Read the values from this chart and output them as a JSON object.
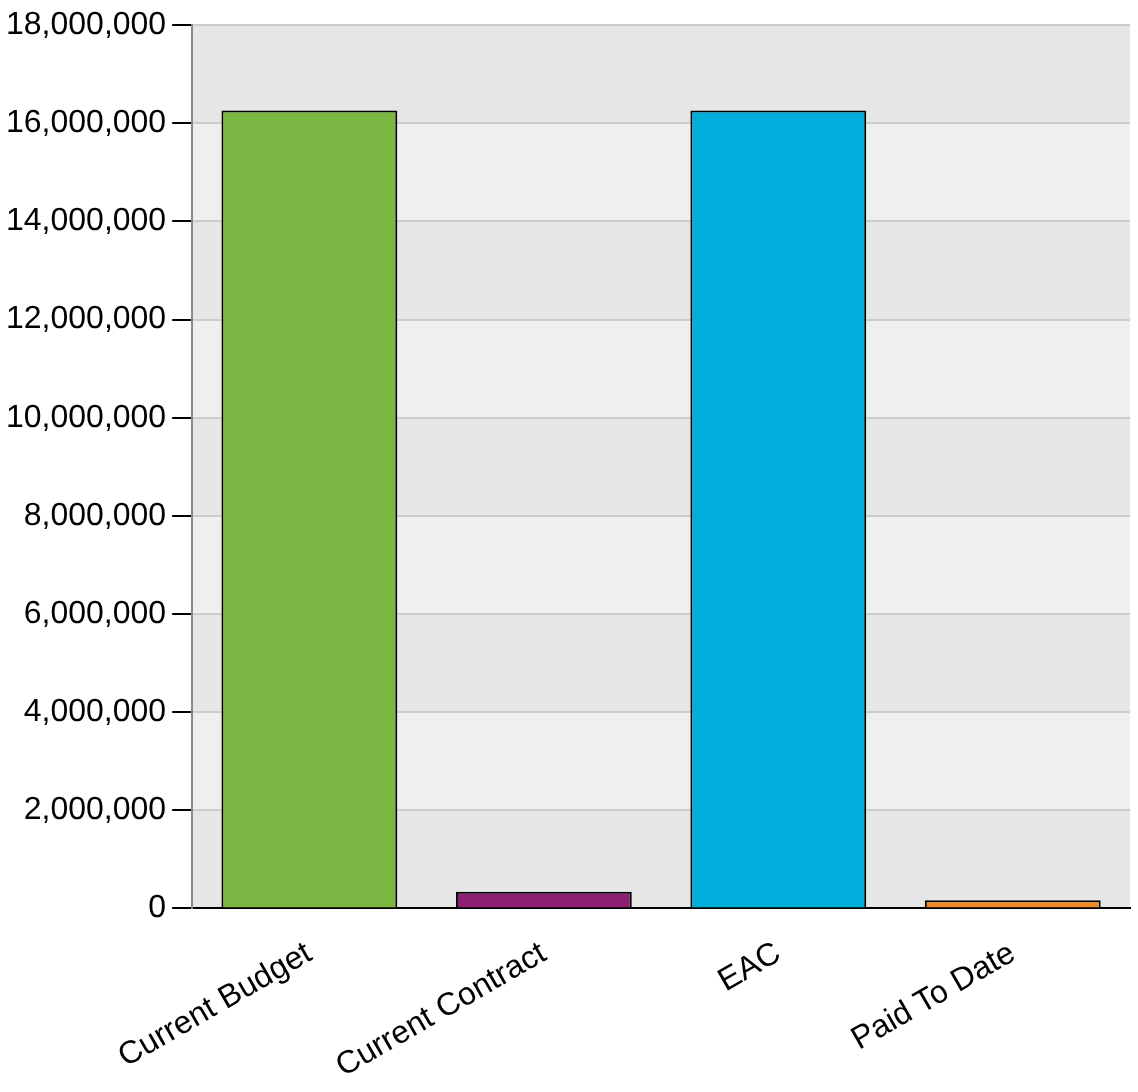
{
  "chart_data": {
    "type": "bar",
    "categories": [
      "Current Budget",
      "Current Contract",
      "EAC",
      "Paid To Date"
    ],
    "values": [
      16260000,
      340000,
      16260000,
      170000
    ],
    "colors": [
      "#7cb642",
      "#8b1f72",
      "#00aedb",
      "#f08a24"
    ],
    "ylim": [
      0,
      18000000
    ],
    "yticks": [
      0,
      {
        "value": 2000000,
        "label": "2,000,000"
      },
      {
        "value": 4000000,
        "label": "4,000,000"
      },
      {
        "value": 6000000,
        "label": "6,000,000"
      },
      {
        "value": 8000000,
        "label": "8,000,000"
      },
      {
        "value": 10000000,
        "label": "10,000,000"
      },
      {
        "value": 12000000,
        "label": "12,000,000"
      },
      {
        "value": 14000000,
        "label": "14,000,000"
      },
      {
        "value": 16000000,
        "label": "16,000,000"
      },
      {
        "value": 18000000,
        "label": "18,000,000"
      }
    ],
    "grid": "y",
    "legend": false
  }
}
